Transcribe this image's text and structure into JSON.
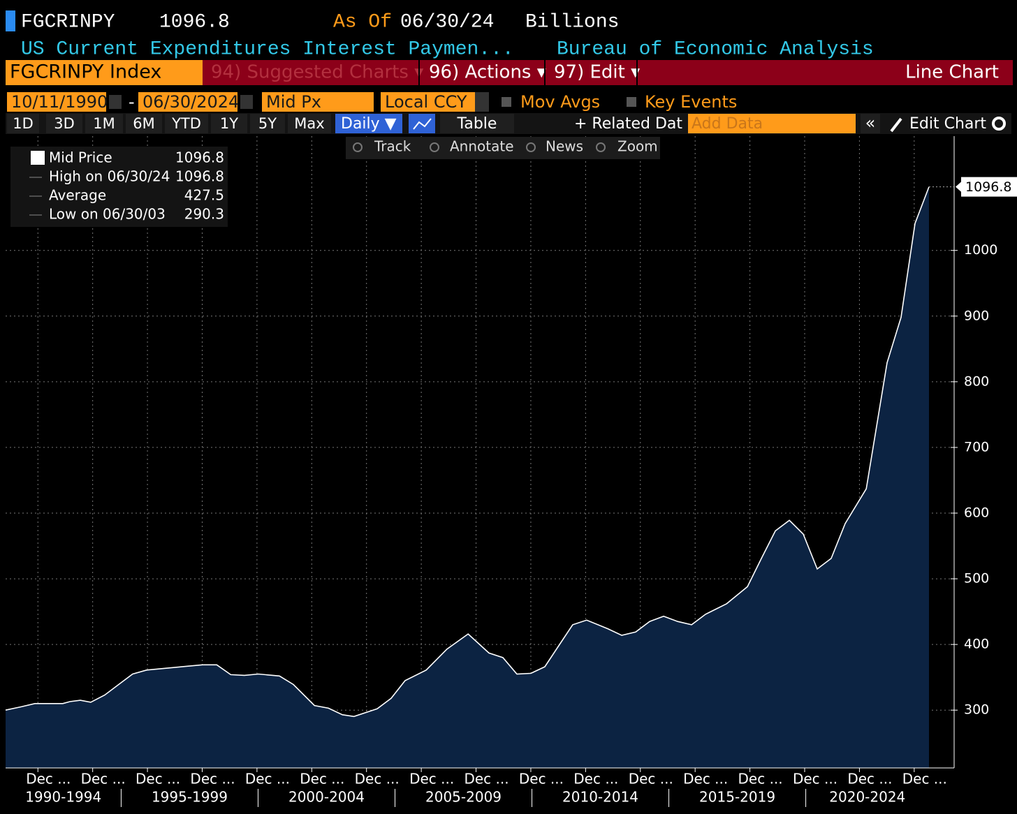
{
  "header": {
    "ticker": "FGCRINPY",
    "price": "1096.8",
    "as_of_label": "As Of",
    "as_of_date": "06/30/24",
    "units": "Billions",
    "description": "US Current Expenditures Interest Paymen...",
    "source": "Bureau of Economic Analysis"
  },
  "menu": {
    "security": "FGCRINPY Index",
    "items": [
      "94) Suggested Charts ▾",
      "96) Actions ▾",
      "97) Edit ▾"
    ],
    "chart_type": "Line Chart"
  },
  "controls": {
    "start_date": "10/11/1990",
    "separator": "-",
    "end_date": "06/30/2024",
    "price_field": "Mid Px",
    "currency": "Local CCY",
    "options": [
      "Mov Avgs",
      "Key Events"
    ]
  },
  "toolbar": {
    "periods": [
      "1D",
      "3D",
      "1M",
      "6M",
      "YTD",
      "1Y",
      "5Y",
      "Max"
    ],
    "frequency": "Daily ▼",
    "table": "Table",
    "related": "+ Related Dat",
    "add_data_placeholder": "Add Data",
    "collapse": "«",
    "edit_chart": "Edit Chart"
  },
  "tools": [
    "Track",
    "Annotate",
    "News",
    "Zoom"
  ],
  "legend": [
    {
      "label": "Mid Price",
      "value": "1096.8"
    },
    {
      "label": "High on 06/30/24",
      "value": "1096.8"
    },
    {
      "label": "Average",
      "value": "427.5"
    },
    {
      "label": "Low on 06/30/03",
      "value": "290.3"
    }
  ],
  "chart_data": {
    "type": "area",
    "x": [
      1990.78,
      1991.34,
      1991.85,
      1992.87,
      1993.13,
      1993.51,
      1993.89,
      1994.4,
      1994.91,
      1995.42,
      1995.93,
      1996.44,
      1997.21,
      1997.97,
      1998.49,
      1999.0,
      1999.5,
      2000.01,
      2000.78,
      2001.29,
      2002.06,
      2002.57,
      2003.08,
      2003.5,
      2004.35,
      2004.86,
      2005.37,
      2006.14,
      2006.9,
      2007.67,
      2008.43,
      2008.94,
      2009.45,
      2009.96,
      2010.47,
      2010.98,
      2011.49,
      2012.0,
      2012.77,
      2013.28,
      2013.79,
      2014.3,
      2014.81,
      2015.32,
      2015.83,
      2016.34,
      2017.11,
      2017.87,
      2018.38,
      2018.89,
      2019.4,
      2019.91,
      2020.42,
      2020.93,
      2021.44,
      2022.21,
      2022.97,
      2023.48,
      2023.99,
      2024.5
    ],
    "values": [
      300,
      305,
      310,
      310,
      313,
      315,
      312,
      323,
      339,
      355,
      361,
      363,
      366,
      369,
      369,
      354,
      353,
      355,
      352,
      339,
      307,
      303,
      293,
      290.3,
      302,
      318,
      345,
      361,
      393,
      416,
      387,
      380,
      355,
      356,
      366,
      398,
      430,
      437,
      424,
      414,
      419,
      435,
      443,
      435,
      430,
      446,
      462,
      488,
      531,
      573,
      589,
      568,
      515,
      531,
      584,
      637,
      829,
      898,
      1041,
      1096.8
    ],
    "color": "#ffffff",
    "fill": "#0c2342",
    "xlim": [
      1990.78,
      2024.5
    ],
    "ylim": [
      212,
      1174
    ],
    "yticks": [
      300,
      400,
      500,
      600,
      700,
      800,
      900,
      1000
    ],
    "xticks": [
      {
        "value": 1991.96,
        "label": "Dec ..."
      },
      {
        "value": 1993.96,
        "label": "Dec ..."
      },
      {
        "value": 1995.96,
        "label": "Dec ..."
      },
      {
        "value": 1997.96,
        "label": "Dec ..."
      },
      {
        "value": 1999.96,
        "label": "Dec ..."
      },
      {
        "value": 2001.96,
        "label": "Dec ..."
      },
      {
        "value": 2003.96,
        "label": "Dec ..."
      },
      {
        "value": 2005.96,
        "label": "Dec ..."
      },
      {
        "value": 2007.96,
        "label": "Dec ..."
      },
      {
        "value": 2009.96,
        "label": "Dec ..."
      },
      {
        "value": 2011.96,
        "label": "Dec ..."
      },
      {
        "value": 2013.96,
        "label": "Dec ..."
      },
      {
        "value": 2015.96,
        "label": "Dec ..."
      },
      {
        "value": 2017.96,
        "label": "Dec ..."
      },
      {
        "value": 2019.96,
        "label": "Dec ..."
      },
      {
        "value": 2021.96,
        "label": "Dec ..."
      },
      {
        "value": 2023.96,
        "label": "Dec ..."
      }
    ],
    "xgroups": [
      {
        "value": 1990.78,
        "label": "1990-1994"
      },
      {
        "value": 1995,
        "label": "1995-1999"
      },
      {
        "value": 2000,
        "label": "2000-2004"
      },
      {
        "value": 2005,
        "label": "2005-2009"
      },
      {
        "value": 2010,
        "label": "2010-2014"
      },
      {
        "value": 2015,
        "label": "2015-2019"
      },
      {
        "value": 2020,
        "label": "2020-2024"
      }
    ],
    "grid": true
  }
}
